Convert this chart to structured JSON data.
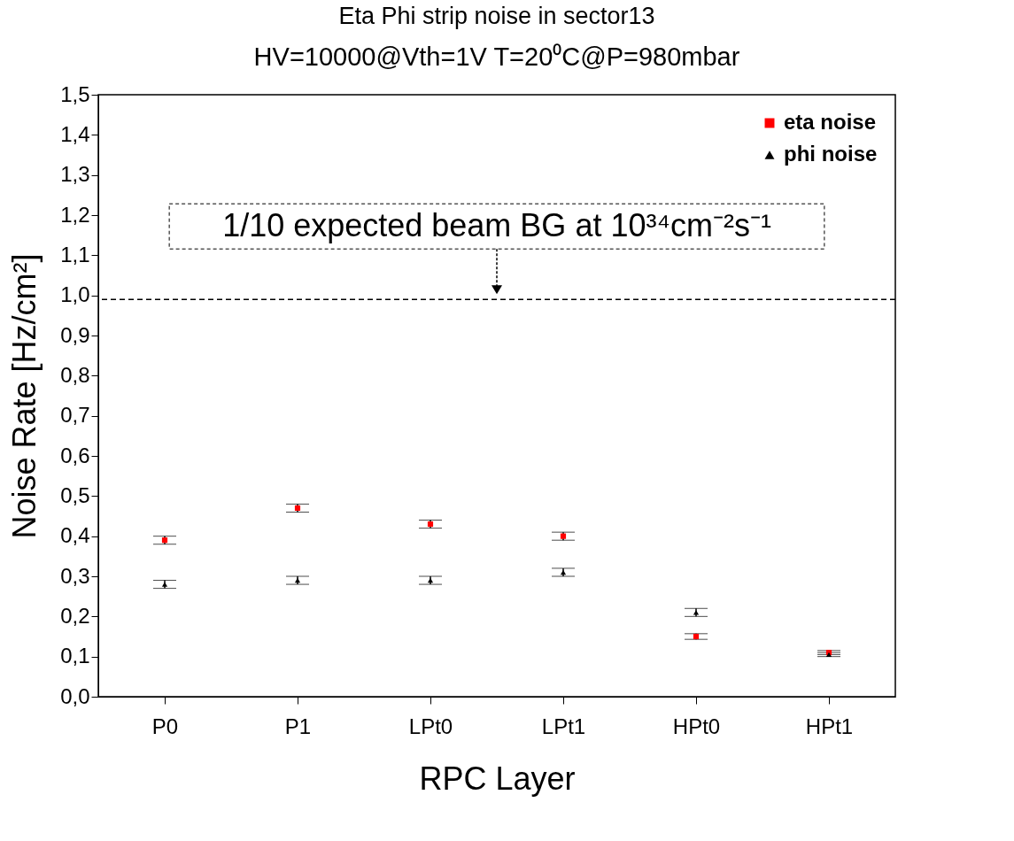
{
  "chart_data": {
    "type": "scatter",
    "title": "Eta Phi strip noise in sector13",
    "subtitle": "HV=10000@Vth=1V  T=20⁰C@P=980mbar",
    "xlabel": "RPC Layer",
    "ylabel": "Noise Rate [Hz/cm²]",
    "categories": [
      "P0",
      "P1",
      "LPt0",
      "LPt1",
      "HPt0",
      "HPt1"
    ],
    "series": [
      {
        "name": "eta noise",
        "color": "#ff0000",
        "marker": "square",
        "values": [
          0.39,
          0.47,
          0.43,
          0.4,
          0.15,
          0.11
        ],
        "errors": [
          0.01,
          0.01,
          0.01,
          0.01,
          0.007,
          0.005
        ]
      },
      {
        "name": "phi noise",
        "color": "#000000",
        "marker": "triangle",
        "values": [
          0.28,
          0.29,
          0.29,
          0.31,
          0.21,
          0.105
        ],
        "errors": [
          0.01,
          0.01,
          0.01,
          0.01,
          0.01,
          0.005
        ]
      }
    ],
    "ylim": [
      0,
      1.5
    ],
    "yticks": [
      {
        "value": 0,
        "label": "0,0"
      },
      {
        "value": 0.1,
        "label": "0,1"
      },
      {
        "value": 0.2,
        "label": "0,2"
      },
      {
        "value": 0.3,
        "label": "0,3"
      },
      {
        "value": 0.4,
        "label": "0,4"
      },
      {
        "value": 0.5,
        "label": "0,5"
      },
      {
        "value": 0.6,
        "label": "0,6"
      },
      {
        "value": 0.7,
        "label": "0,7"
      },
      {
        "value": 0.8,
        "label": "0,8"
      },
      {
        "value": 0.9,
        "label": "0,9"
      },
      {
        "value": 1,
        "label": "1,0"
      },
      {
        "value": 1.1,
        "label": "1,1"
      },
      {
        "value": 1.2,
        "label": "1,2"
      },
      {
        "value": 1.3,
        "label": "1,3"
      },
      {
        "value": 1.4,
        "label": "1,4"
      },
      {
        "value": 1.5,
        "label": "1,5"
      }
    ],
    "ref_lines": [
      {
        "axis": "y",
        "value": 0.99,
        "label": "1/10 expected beam BG at 10³⁴cm⁻²s⁻¹",
        "line_style": "dashed",
        "color": "#000000"
      }
    ],
    "legend": "top right",
    "grid": false
  }
}
